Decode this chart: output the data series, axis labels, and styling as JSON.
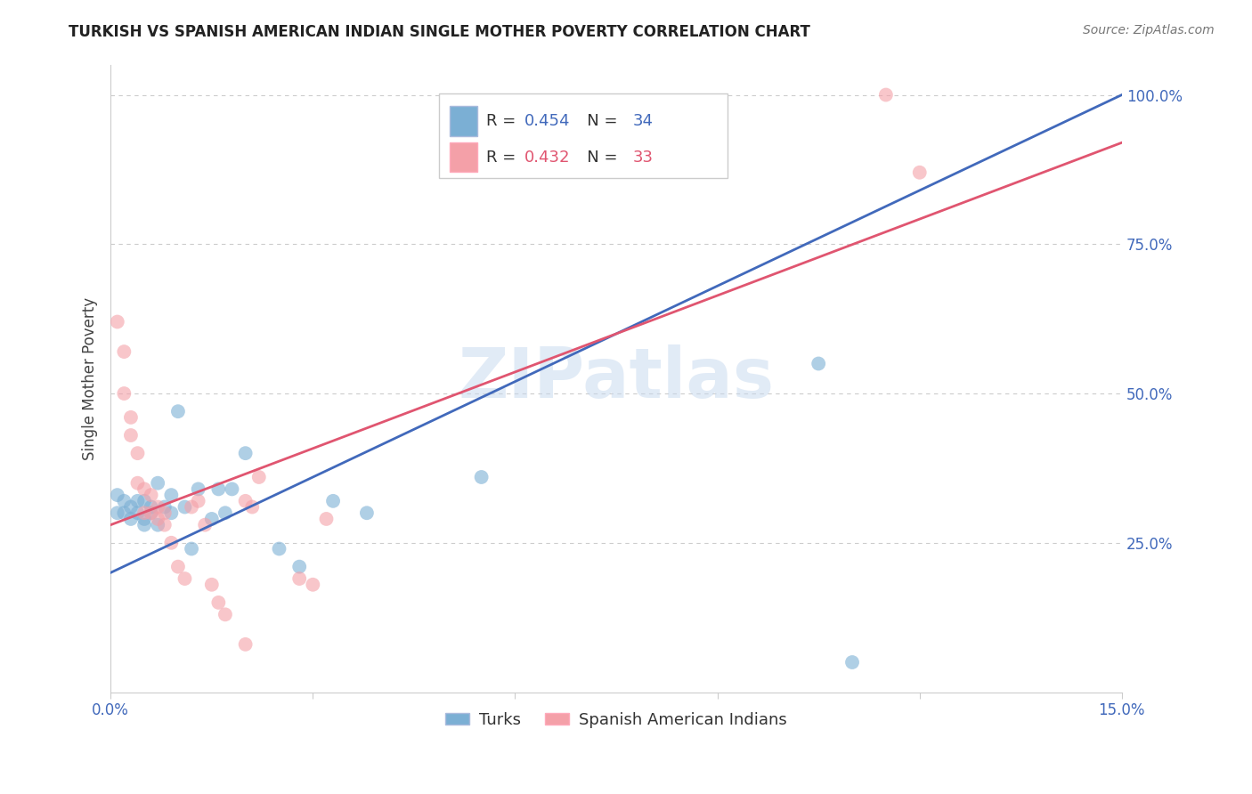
{
  "title": "TURKISH VS SPANISH AMERICAN INDIAN SINGLE MOTHER POVERTY CORRELATION CHART",
  "source": "Source: ZipAtlas.com",
  "ylabel": "Single Mother Poverty",
  "xlim": [
    0.0,
    0.15
  ],
  "ylim": [
    0.0,
    1.05
  ],
  "blue_R": 0.454,
  "blue_N": 34,
  "pink_R": 0.432,
  "pink_N": 33,
  "blue_color": "#7BAFD4",
  "pink_color": "#F4A0A8",
  "blue_line_color": "#4169BB",
  "pink_line_color": "#E05570",
  "watermark": "ZIPatlas",
  "background_color": "#FFFFFF",
  "grid_color": "#CCCCCC",
  "turks_x": [
    0.001,
    0.001,
    0.002,
    0.002,
    0.003,
    0.003,
    0.004,
    0.004,
    0.005,
    0.005,
    0.005,
    0.006,
    0.006,
    0.007,
    0.007,
    0.008,
    0.009,
    0.009,
    0.01,
    0.011,
    0.012,
    0.013,
    0.015,
    0.016,
    0.017,
    0.018,
    0.02,
    0.025,
    0.028,
    0.033,
    0.038,
    0.055,
    0.105,
    0.11
  ],
  "turks_y": [
    0.33,
    0.3,
    0.32,
    0.3,
    0.31,
    0.29,
    0.32,
    0.3,
    0.32,
    0.29,
    0.28,
    0.31,
    0.3,
    0.35,
    0.28,
    0.31,
    0.3,
    0.33,
    0.47,
    0.31,
    0.24,
    0.34,
    0.29,
    0.34,
    0.3,
    0.34,
    0.4,
    0.24,
    0.21,
    0.32,
    0.3,
    0.36,
    0.55,
    0.05
  ],
  "sai_x": [
    0.001,
    0.002,
    0.002,
    0.003,
    0.003,
    0.004,
    0.004,
    0.005,
    0.005,
    0.006,
    0.006,
    0.007,
    0.007,
    0.008,
    0.008,
    0.009,
    0.01,
    0.011,
    0.012,
    0.013,
    0.014,
    0.015,
    0.016,
    0.017,
    0.02,
    0.022,
    0.028,
    0.03,
    0.032,
    0.02,
    0.021,
    0.115,
    0.12
  ],
  "sai_y": [
    0.62,
    0.57,
    0.5,
    0.46,
    0.43,
    0.4,
    0.35,
    0.34,
    0.3,
    0.33,
    0.3,
    0.31,
    0.29,
    0.3,
    0.28,
    0.25,
    0.21,
    0.19,
    0.31,
    0.32,
    0.28,
    0.18,
    0.15,
    0.13,
    0.08,
    0.36,
    0.19,
    0.18,
    0.29,
    0.32,
    0.31,
    1.0,
    0.87
  ]
}
